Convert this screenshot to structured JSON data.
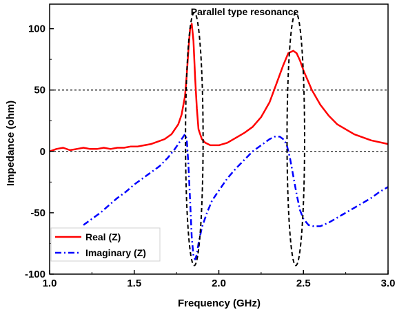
{
  "chart_data": {
    "type": "line",
    "xlabel": "Frequency (GHz)",
    "ylabel": "Impedance (ohm)",
    "xlim": [
      1.0,
      3.0
    ],
    "ylim": [
      -100,
      120
    ],
    "x_ticks": [
      1.0,
      1.5,
      2.0,
      2.5,
      3.0
    ],
    "x_tick_labels": [
      "1.0",
      "1.5",
      "2.0",
      "2.5",
      "3.0"
    ],
    "y_ticks": [
      -100,
      -50,
      0,
      50,
      100
    ],
    "y_tick_labels": [
      "-100",
      "-50",
      "0",
      "50",
      "100"
    ],
    "reference_lines_y": [
      50,
      0
    ],
    "annotation": "Parallel type resonance",
    "legend_position": "bottom-left",
    "series": [
      {
        "name": "Real (Z)",
        "color": "#ff0000",
        "style": "solid",
        "x": [
          1.0,
          1.04,
          1.08,
          1.12,
          1.16,
          1.2,
          1.24,
          1.28,
          1.32,
          1.36,
          1.4,
          1.44,
          1.48,
          1.52,
          1.56,
          1.6,
          1.64,
          1.68,
          1.72,
          1.76,
          1.78,
          1.8,
          1.81,
          1.82,
          1.83,
          1.84,
          1.85,
          1.86,
          1.87,
          1.88,
          1.9,
          1.92,
          1.95,
          2.0,
          2.05,
          2.1,
          2.15,
          2.2,
          2.25,
          2.3,
          2.34,
          2.38,
          2.41,
          2.44,
          2.46,
          2.48,
          2.5,
          2.55,
          2.6,
          2.65,
          2.7,
          2.8,
          2.9,
          3.0
        ],
        "y": [
          0,
          2,
          3,
          1,
          2,
          3,
          2,
          2,
          3,
          2,
          3,
          3,
          4,
          4,
          5,
          6,
          8,
          10,
          14,
          22,
          30,
          45,
          62,
          82,
          100,
          104,
          90,
          60,
          35,
          18,
          10,
          7,
          5,
          5,
          7,
          11,
          15,
          20,
          28,
          40,
          55,
          70,
          80,
          82,
          80,
          74,
          66,
          50,
          38,
          29,
          22,
          14,
          9,
          6
        ]
      },
      {
        "name": "Imaginary (Z)",
        "color": "#0000ff",
        "style": "dashdot",
        "x": [
          1.2,
          1.25,
          1.3,
          1.35,
          1.4,
          1.45,
          1.5,
          1.55,
          1.6,
          1.65,
          1.7,
          1.74,
          1.77,
          1.79,
          1.8,
          1.81,
          1.82,
          1.83,
          1.84,
          1.85,
          1.86,
          1.87,
          1.88,
          1.9,
          1.93,
          1.96,
          2.0,
          2.05,
          2.1,
          2.15,
          2.2,
          2.25,
          2.3,
          2.33,
          2.36,
          2.38,
          2.4,
          2.42,
          2.44,
          2.46,
          2.48,
          2.5,
          2.53,
          2.56,
          2.6,
          2.65,
          2.7,
          2.75,
          2.8,
          2.85,
          2.9,
          2.95,
          3.0
        ],
        "y": [
          -60,
          -55,
          -50,
          -44,
          -38,
          -33,
          -27,
          -22,
          -17,
          -12,
          -5,
          2,
          8,
          12,
          14,
          10,
          -10,
          -40,
          -70,
          -85,
          -88,
          -84,
          -75,
          -62,
          -50,
          -40,
          -32,
          -22,
          -14,
          -7,
          0,
          5,
          10,
          12,
          12,
          10,
          6,
          -5,
          -20,
          -35,
          -48,
          -55,
          -60,
          -61,
          -61,
          -58,
          -54,
          -50,
          -46,
          -42,
          -38,
          -33,
          -29
        ]
      }
    ],
    "annotation_ellipses": [
      {
        "cx": 1.855,
        "cy": 10,
        "rx_data": 0.052,
        "ry_data": 103
      },
      {
        "cx": 2.455,
        "cy": 10,
        "rx_data": 0.052,
        "ry_data": 103
      }
    ]
  }
}
